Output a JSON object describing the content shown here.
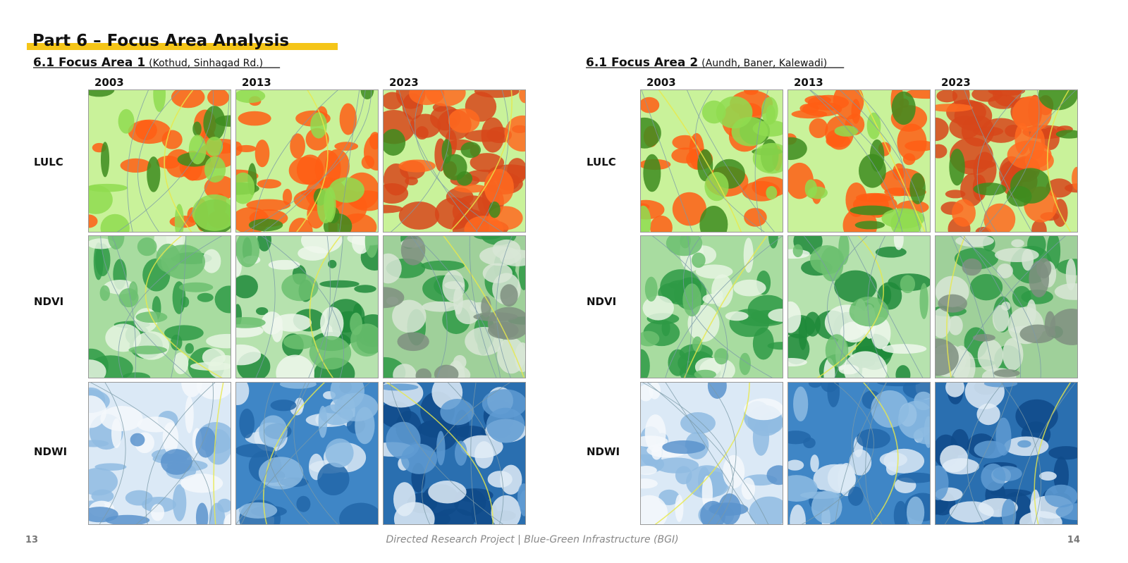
{
  "header": {
    "title": "Part 6 – Focus Area Analysis"
  },
  "sections": [
    {
      "heading": "6.1 Focus Area 1",
      "subheading": "(Kothud, Sinhagad Rd.)",
      "years": [
        "2003",
        "2013",
        "2023"
      ],
      "rows": [
        "LULC",
        "NDVI",
        "NDWI"
      ]
    },
    {
      "heading": "6.1 Focus Area 2",
      "subheading": "(Aundh, Baner, Kalewadi)",
      "years": [
        "2003",
        "2013",
        "2023"
      ],
      "rows": [
        "LULC",
        "NDVI",
        "NDWI"
      ]
    }
  ],
  "footer": {
    "left_page": "13",
    "text": "Directed Research Project | Blue-Green Infrastructure (BGI)",
    "right_page": "14"
  }
}
